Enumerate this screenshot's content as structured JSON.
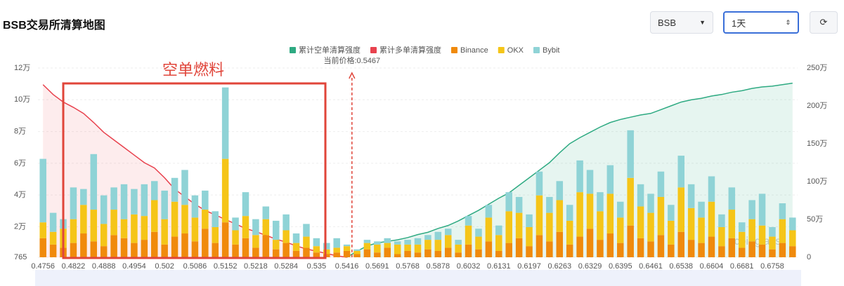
{
  "header": {
    "title": "BSB交易所清算地图",
    "symbol": "BSB",
    "period": "1天"
  },
  "chart_data": {
    "type": "bar",
    "annotations": {
      "box_label": "空单燃料",
      "current_price": "当前价格:0.5467"
    },
    "watermark": "coinglass",
    "categories": [
      "0.4756",
      null,
      null,
      "0.4822",
      null,
      null,
      "0.4888",
      null,
      null,
      "0.4954",
      null,
      null,
      "0.502",
      null,
      null,
      "0.5086",
      null,
      null,
      "0.5152",
      null,
      null,
      "0.5218",
      null,
      null,
      "0.5284",
      null,
      null,
      "0.535",
      null,
      null,
      "0.5416",
      null,
      null,
      "0.5691",
      null,
      null,
      "0.5768",
      null,
      null,
      "0.5878",
      null,
      null,
      "0.6032",
      null,
      null,
      "0.6131",
      null,
      null,
      "0.6197",
      null,
      null,
      "0.6263",
      null,
      null,
      "0.6329",
      null,
      null,
      "0.6395",
      null,
      null,
      "0.6461",
      null,
      null,
      "0.6538",
      null,
      null,
      "0.6604",
      null,
      null,
      "0.6681",
      null,
      null,
      "0.6758",
      null,
      null
    ],
    "series": [
      {
        "name": "累计空单清算强度",
        "type": "line",
        "axis": "y2",
        "color": "#2eaa82",
        "fill": "rgba(46,170,130,0.12)",
        "values": [
          null,
          null,
          null,
          null,
          null,
          null,
          null,
          null,
          null,
          null,
          null,
          null,
          null,
          null,
          null,
          null,
          null,
          null,
          null,
          null,
          null,
          null,
          null,
          null,
          null,
          null,
          null,
          null,
          null,
          null,
          0,
          80000,
          150000,
          190000,
          210000,
          230000,
          260000,
          300000,
          330000,
          380000,
          420000,
          480000,
          550000,
          620000,
          700000,
          780000,
          850000,
          950000,
          1050000,
          1150000,
          1250000,
          1380000,
          1500000,
          1580000,
          1650000,
          1720000,
          1780000,
          1820000,
          1850000,
          1880000,
          1900000,
          1950000,
          2000000,
          2050000,
          2080000,
          2100000,
          2130000,
          2150000,
          2180000,
          2200000,
          2230000,
          2250000,
          2260000,
          2280000,
          2300000
        ]
      },
      {
        "name": "累计多单清算强度",
        "type": "line",
        "axis": "y2",
        "color": "#e8424e",
        "fill": "rgba(232,66,78,0.1)",
        "values": [
          2280000,
          2150000,
          2050000,
          1980000,
          1900000,
          1780000,
          1650000,
          1550000,
          1450000,
          1350000,
          1250000,
          1180000,
          1050000,
          900000,
          800000,
          700000,
          620000,
          560000,
          500000,
          440000,
          380000,
          340000,
          290000,
          240000,
          200000,
          150000,
          110000,
          80000,
          50000,
          20000,
          0,
          null,
          null,
          null,
          null,
          null,
          null,
          null,
          null,
          null,
          null,
          null,
          null,
          null,
          null,
          null,
          null,
          null,
          null,
          null,
          null,
          null,
          null,
          null,
          null,
          null,
          null,
          null,
          null,
          null,
          null,
          null,
          null,
          null,
          null,
          null,
          null,
          null,
          null,
          null,
          null,
          null,
          null,
          null,
          null
        ]
      },
      {
        "name": "Binance",
        "type": "bar",
        "color": "#f08a0c",
        "values": [
          12000,
          8000,
          6000,
          9000,
          15000,
          10000,
          7000,
          14000,
          12000,
          9000,
          11000,
          16000,
          8000,
          13000,
          15000,
          10000,
          18000,
          9000,
          22000,
          8000,
          12000,
          6000,
          14000,
          5000,
          9000,
          4000,
          6000,
          3000,
          2000,
          3000,
          4000,
          2000,
          5000,
          3000,
          6000,
          2000,
          4000,
          3000,
          5000,
          4000,
          6000,
          3000,
          8000,
          5000,
          10000,
          4000,
          9000,
          12000,
          7000,
          14000,
          10000,
          16000,
          8000,
          13000,
          18000,
          11000,
          15000,
          9000,
          20000,
          12000,
          10000,
          14000,
          8000,
          16000,
          11000,
          9000,
          13000,
          7000,
          12000,
          6000,
          10000,
          8000,
          5000,
          9000,
          7000
        ]
      },
      {
        "name": "OKX",
        "type": "bar",
        "color": "#f5c518",
        "values": [
          10000,
          8000,
          12000,
          15000,
          18000,
          20000,
          14000,
          16000,
          12000,
          18000,
          15000,
          20000,
          16000,
          22000,
          18000,
          15000,
          12000,
          10000,
          40000,
          9000,
          14000,
          8000,
          10000,
          6000,
          8000,
          5000,
          7000,
          4000,
          3000,
          3000,
          3000,
          2000,
          4000,
          5000,
          3000,
          6000,
          4000,
          5000,
          6000,
          7000,
          8000,
          5000,
          12000,
          8000,
          15000,
          10000,
          20000,
          16000,
          12000,
          25000,
          18000,
          20000,
          15000,
          28000,
          22000,
          18000,
          25000,
          16000,
          30000,
          20000,
          18000,
          24000,
          15000,
          28000,
          20000,
          16000,
          22000,
          12000,
          18000,
          10000,
          14000,
          12000,
          8000,
          15000,
          10000
        ]
      },
      {
        "name": "Bybit",
        "type": "bar",
        "color": "#8fd3d6",
        "values": [
          40000,
          12000,
          6000,
          20000,
          10000,
          35000,
          18000,
          14000,
          22000,
          16000,
          20000,
          12000,
          18000,
          15000,
          22000,
          14000,
          12000,
          10000,
          45000,
          8000,
          15000,
          10000,
          8000,
          12000,
          10000,
          6000,
          8000,
          5000,
          4000,
          6000,
          1000,
          1000,
          2000,
          2000,
          3000,
          2000,
          3000,
          4000,
          3000,
          5000,
          4000,
          3000,
          6000,
          5000,
          8000,
          6000,
          12000,
          10000,
          8000,
          15000,
          10000,
          12000,
          10000,
          20000,
          15000,
          12000,
          18000,
          10000,
          30000,
          14000,
          12000,
          16000,
          10000,
          20000,
          15000,
          10000,
          16000,
          8000,
          14000,
          6000,
          12000,
          20000,
          6000,
          10000,
          8000
        ]
      }
    ],
    "ylim": [
      765,
      120000
    ],
    "yticks": [
      765,
      {
        "value": 20000,
        "label": "2万"
      },
      {
        "value": 40000,
        "label": "4万"
      },
      {
        "value": 60000,
        "label": "6万"
      },
      {
        "value": 80000,
        "label": "8万"
      },
      {
        "value": 100000,
        "label": "10万"
      },
      {
        "value": 120000,
        "label": "12万"
      }
    ],
    "y2lim": [
      0,
      2500000
    ],
    "y2ticks": [
      0,
      {
        "value": 500000,
        "label": "50万"
      },
      {
        "value": 1000000,
        "label": "100万"
      },
      {
        "value": 1500000,
        "label": "150万"
      },
      {
        "value": 2000000,
        "label": "200万"
      },
      {
        "value": 2500000,
        "label": "250万"
      }
    ],
    "grid": true,
    "legend": "top"
  }
}
